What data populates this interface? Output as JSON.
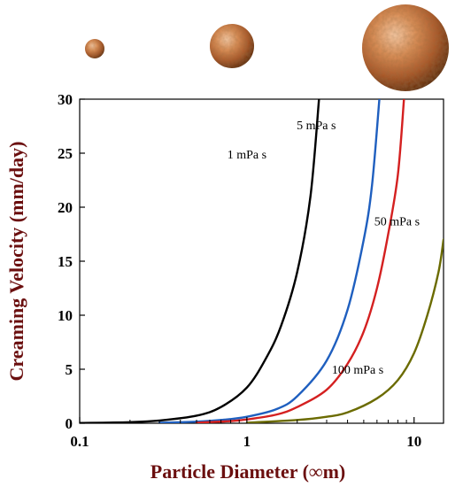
{
  "chart_data": {
    "type": "line",
    "title": "",
    "xlabel": "Particle Diameter (∞m)",
    "ylabel": "Creaming Velocity (mm/day)",
    "x_scale": "log",
    "xlim": [
      0.1,
      15
    ],
    "ylim": [
      0,
      30
    ],
    "x_ticks": [
      0.1,
      1,
      10
    ],
    "x_tick_labels": [
      "0.1",
      "1",
      "10"
    ],
    "y_ticks": [
      0,
      5,
      10,
      15,
      20,
      25,
      30
    ],
    "y_tick_labels": [
      "0",
      "5",
      "10",
      "15",
      "20",
      "25",
      "30"
    ],
    "grid": false,
    "legend": "none",
    "series": [
      {
        "name": "1 mPa s",
        "color": "#000000",
        "x": [
          0.1,
          0.2,
          0.3,
          0.5,
          0.7,
          1.0,
          1.3,
          1.6,
          2.0,
          2.4,
          2.7
        ],
        "y": [
          0.02,
          0.1,
          0.25,
          0.7,
          1.5,
          3.3,
          6.0,
          9.0,
          14.0,
          21.0,
          30.0
        ],
        "label_at": [
          1.0,
          24.5
        ]
      },
      {
        "name": "5 mPa s",
        "color": "#1f5fbf",
        "x": [
          0.3,
          0.5,
          0.7,
          1.0,
          1.5,
          2.0,
          3.0,
          4.0,
          5.0,
          5.6,
          6.2
        ],
        "y": [
          0.05,
          0.15,
          0.3,
          0.6,
          1.3,
          2.5,
          5.8,
          10.5,
          17.0,
          22.0,
          30.0
        ],
        "label_at": [
          2.6,
          27.2
        ]
      },
      {
        "name": "50 mPa s",
        "color": "#d42020",
        "x": [
          0.5,
          0.8,
          1.0,
          1.5,
          2.0,
          3.0,
          4.0,
          5.0,
          6.0,
          7.0,
          8.0,
          8.7
        ],
        "y": [
          0.05,
          0.2,
          0.35,
          0.8,
          1.5,
          3.1,
          5.5,
          8.5,
          12.5,
          17.5,
          23.0,
          30.0
        ],
        "label_at": [
          7.9,
          18.3
        ]
      },
      {
        "name": "100 mPa s",
        "color": "#6b6b00",
        "x": [
          1.0,
          2.0,
          3.0,
          4.0,
          6.0,
          8.0,
          10.0,
          12.0,
          14.0,
          15.0
        ],
        "y": [
          0.05,
          0.3,
          0.6,
          1.0,
          2.3,
          4.0,
          6.5,
          10.0,
          14.0,
          17.0
        ],
        "label_at": [
          4.6,
          4.6
        ]
      }
    ]
  }
}
